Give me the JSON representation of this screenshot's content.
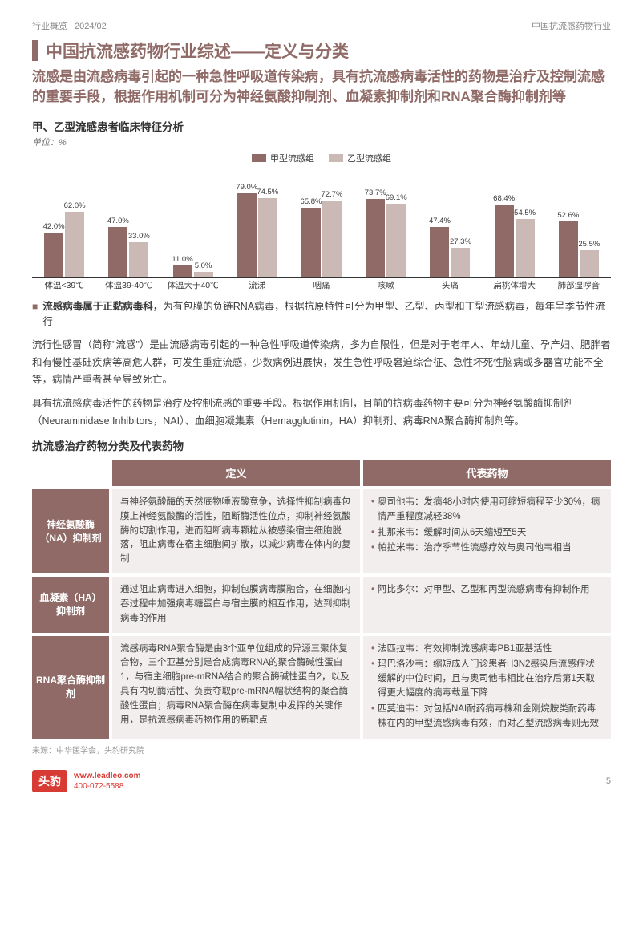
{
  "header": {
    "left": "行业概览 | 2024/02",
    "right": "中国抗流感药物行业"
  },
  "title": "中国抗流感药物行业综述——定义与分类",
  "subtitle": "流感是由流感病毒引起的一种急性呼吸道传染病，具有抗流感病毒活性的药物是治疗及控制流感的重要手段，根据作用机制可分为神经氨酸抑制剂、血凝素抑制剂和RNA聚合酶抑制剂等",
  "chart_section": "甲、乙型流感患者临床特征分析",
  "unit": "单位：%",
  "legend": [
    "甲型流感组",
    "乙型流感组"
  ],
  "chart": {
    "colors": {
      "s1": "#8f6a66",
      "s2": "#cbb9b5"
    },
    "ymax": 85,
    "categories": [
      "体温<39℃",
      "体温39-40℃",
      "体温大于40℃",
      "流涕",
      "咽痛",
      "咳嗽",
      "头痛",
      "扁桃体增大",
      "肺部湿啰音"
    ],
    "s1": [
      42.0,
      47.0,
      11.0,
      79.0,
      65.8,
      73.7,
      47.4,
      68.4,
      52.6
    ],
    "s2": [
      62.0,
      33.0,
      5.0,
      74.5,
      72.7,
      69.1,
      27.3,
      54.5,
      25.5
    ],
    "s1_labels": [
      "42.0%",
      "47.0%",
      "11.0%",
      "79.0%",
      "65.8%",
      "73.7%",
      "47.4%",
      "68.4%",
      "52.6%"
    ],
    "s2_labels": [
      "62.0%",
      "33.0%",
      "5.0%",
      "74.5%",
      "72.7%",
      "69.1%",
      "27.3%",
      "54.5%",
      "25.5%"
    ]
  },
  "bullet_intro": [
    "流感病毒属于正黏病毒科，",
    "为有包膜的负链RNA病毒，根据抗原特性可分为甲型、乙型、丙型和丁型流感病毒，每年呈季节性流行"
  ],
  "para1": "流行性感冒（简称\"流感\"）是由流感病毒引起的一种急性呼吸道传染病，多为自限性，但是对于老年人、年幼儿童、孕产妇、肥胖者和有慢性基础疾病等高危人群，可发生重症流感，少数病例进展快，发生急性呼吸窘迫综合征、急性坏死性脑病或多器官功能不全等，病情严重者甚至导致死亡。",
  "para2": "具有抗流感病毒活性的药物是治疗及控制流感的重要手段。根据作用机制，目前的抗病毒药物主要可分为神经氨酸酶抑制剂（Neuraminidase Inhibitors，NAI）、血细胞凝集素（Hemagglutinin，HA）抑制剂、病毒RNA聚合酶抑制剂等。",
  "table_title": "抗流感治疗药物分类及代表药物",
  "th": [
    "定义",
    "代表药物"
  ],
  "rows": [
    {
      "head": "神经氨酸酶（NA）抑制剂",
      "def": "与神经氨酸酶的天然底物唾液酸竞争，选择性抑制病毒包膜上神经氨酸酶的活性，阻断酶活性位点，抑制神经氨酸酶的切割作用，进而阻断病毒颗粒从被感染宿主细胞脱落，阻止病毒在宿主细胞间扩散，以减少病毒在体内的复制",
      "drugs": [
        "奥司他韦：发病48小时内使用可缩短病程至少30%，病情严重程度减轻38%",
        "扎那米韦：缓解时间从6天缩短至5天",
        "帕拉米韦：治疗季节性流感疗效与奥司他韦相当"
      ]
    },
    {
      "head": "血凝素（HA）抑制剂",
      "def": "通过阻止病毒进入细胞，抑制包膜病毒膜融合，在细胞内吞过程中加强病毒糖蛋白与宿主膜的相互作用，达到抑制病毒的作用",
      "drugs": [
        "阿比多尔：对甲型、乙型和丙型流感病毒有抑制作用"
      ]
    },
    {
      "head": "RNA聚合酶抑制剂",
      "def": "流感病毒RNA聚合酶是由3个亚单位组成的异源三聚体复合物，三个亚基分别是合成病毒RNA的聚合酶碱性蛋白1，与宿主细胞pre-mRNA结合的聚合酶碱性蛋白2，以及具有内切酶活性、负责夺取pre-mRNA帽状结构的聚合酶酸性蛋白；病毒RNA聚合酶在病毒复制中发挥的关键作用，是抗流感病毒药物作用的新靶点",
      "drugs": [
        "法匹拉韦：有效抑制流感病毒PB1亚基活性",
        "玛巴洛沙韦：缩短成人门诊患者H3N2感染后流感症状缓解的中位时间，且与奥司他韦相比在治疗后第1天取得更大幅度的病毒载量下降",
        "匹莫迪韦：对包括NAI耐药病毒株和金刚烷胺类耐药毒株在内的甲型流感病毒有效，而对乙型流感病毒则无效"
      ]
    }
  ],
  "source": "来源：中华医学会，头豹研究院",
  "footer": {
    "brand": "头豹",
    "url": "www.leadleo.com",
    "tel": "400-072-5588",
    "page": "5"
  }
}
